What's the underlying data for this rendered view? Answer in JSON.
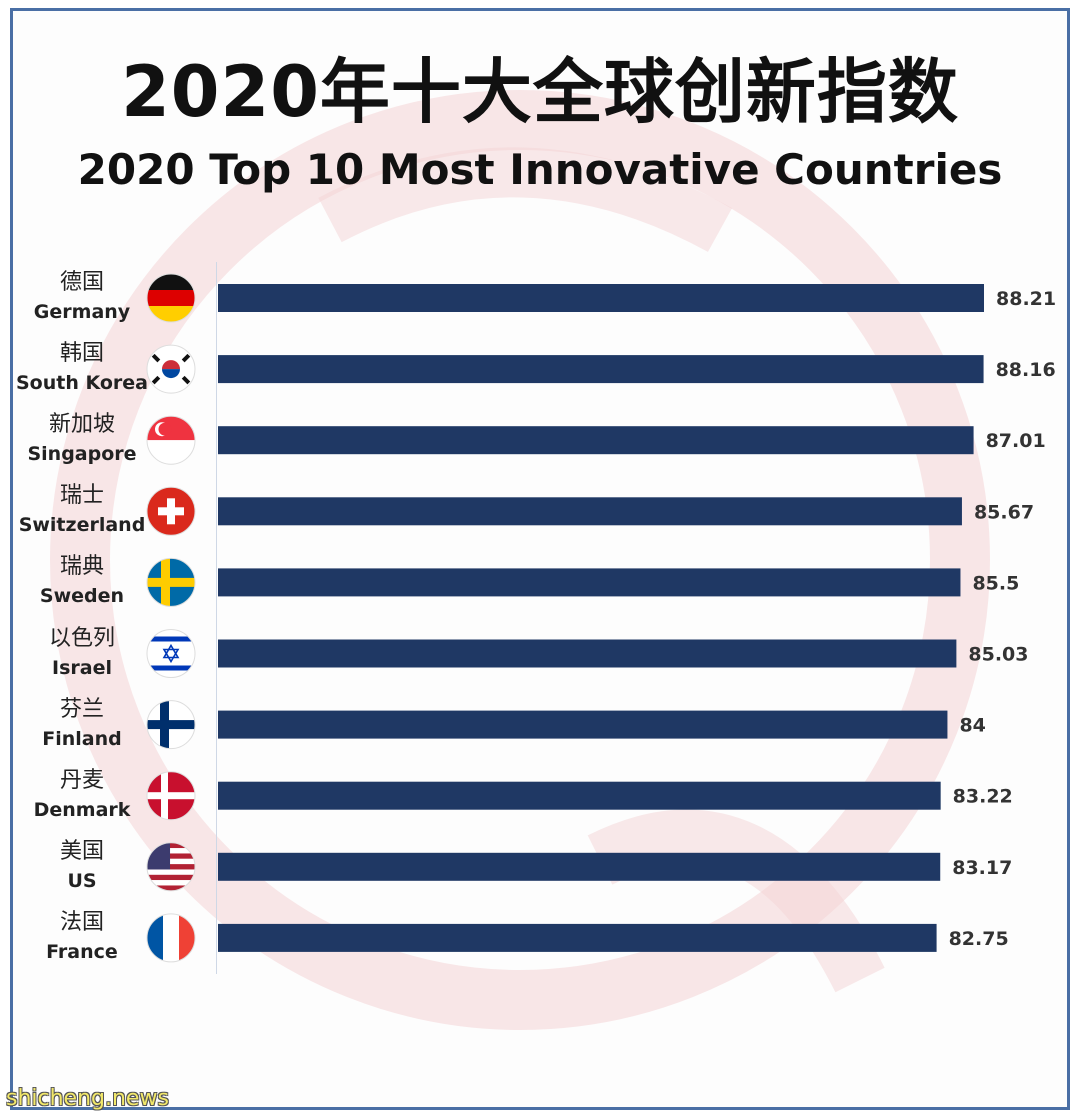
{
  "title_zh": "2020年十大全球创新指数",
  "title_en": "2020 Top 10 Most Innovative Countries",
  "watermark_text": "shicheng.news",
  "colors": {
    "bar": "#1f3864",
    "watermark": "#f4d3d6",
    "border": "#4a6fa5"
  },
  "countries": [
    {
      "zh": "德国",
      "en": "Germany",
      "flag": "germany-flag-icon"
    },
    {
      "zh": "韩国",
      "en": "South Korea",
      "flag": "south-korea-flag-icon"
    },
    {
      "zh": "新加坡",
      "en": "Singapore",
      "flag": "singapore-flag-icon"
    },
    {
      "zh": "瑞士",
      "en": "Switzerland",
      "flag": "switzerland-flag-icon"
    },
    {
      "zh": "瑞典",
      "en": "Sweden",
      "flag": "sweden-flag-icon"
    },
    {
      "zh": "以色列",
      "en": "Israel",
      "flag": "israel-flag-icon"
    },
    {
      "zh": "芬兰",
      "en": "Finland",
      "flag": "finland-flag-icon"
    },
    {
      "zh": "丹麦",
      "en": "Denmark",
      "flag": "denmark-flag-icon"
    },
    {
      "zh": "美国",
      "en": "US",
      "flag": "us-flag-icon"
    },
    {
      "zh": "法国",
      "en": "France",
      "flag": "france-flag-icon"
    }
  ],
  "chart_data": {
    "type": "bar",
    "orientation": "horizontal",
    "categories": [
      "Germany",
      "South Korea",
      "Singapore",
      "Switzerland",
      "Sweden",
      "Israel",
      "Finland",
      "Denmark",
      "US",
      "France"
    ],
    "values": [
      88.21,
      88.16,
      87.01,
      85.67,
      85.5,
      85.03,
      84,
      83.22,
      83.17,
      82.75
    ],
    "value_labels": [
      "88.21",
      "88.16",
      "87.01",
      "85.67",
      "85.5",
      "85.03",
      "84",
      "83.22",
      "83.17",
      "82.75"
    ],
    "title": "2020 Top 10 Most Innovative Countries",
    "xlabel": "",
    "ylabel": "",
    "xlim": [
      0,
      88.21
    ],
    "grid": false,
    "legend": "none"
  }
}
